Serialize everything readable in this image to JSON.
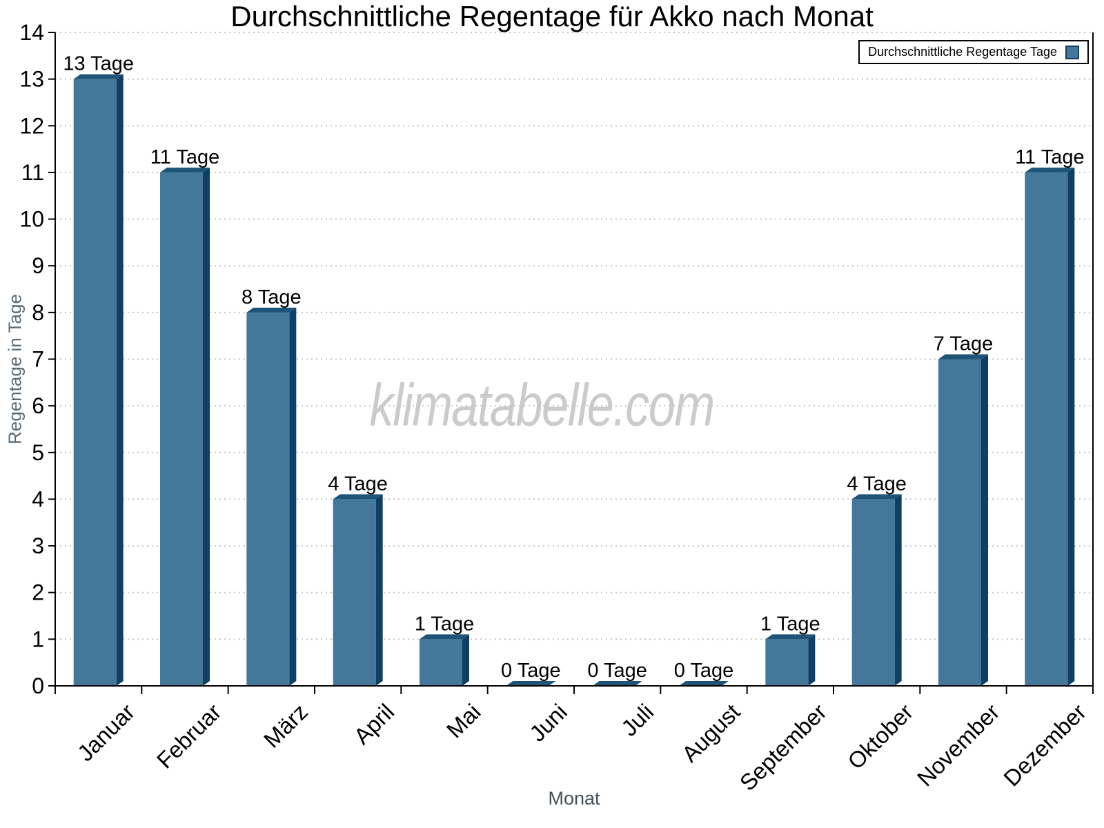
{
  "chart_data": {
    "type": "bar",
    "title": "Durchschnittliche Regentage für Akko nach Monat",
    "legend_label": "Durchschnittliche Regentage Tage",
    "watermark": "klimatabelle.com",
    "xlabel": "Monat",
    "ylabel": "Regentage in Tage",
    "categories": [
      "Januar",
      "Februar",
      "März",
      "April",
      "Mai",
      "Juni",
      "Juli",
      "August",
      "September",
      "Oktober",
      "November",
      "Dezember"
    ],
    "values": [
      13,
      11,
      8,
      4,
      1,
      0,
      0,
      0,
      1,
      4,
      7,
      11
    ],
    "value_suffix": "Tage",
    "ylim": [
      0,
      14
    ],
    "ytick_step": 1,
    "grid": "dotted horizontal",
    "legend_position": "top-right",
    "colors": {
      "bar_face": "#44789A",
      "bar_top": "#1D5478",
      "bar_side": "#113F63",
      "grid_line": "#C4C4C4",
      "axis_line": "#000000",
      "tick_label": "#000000",
      "value_label": "#000000",
      "y_axis_title": "#5A6A76",
      "x_axis_title": "#454F58",
      "watermark": "#CBCBCB",
      "background": "#FFFFFF"
    }
  }
}
